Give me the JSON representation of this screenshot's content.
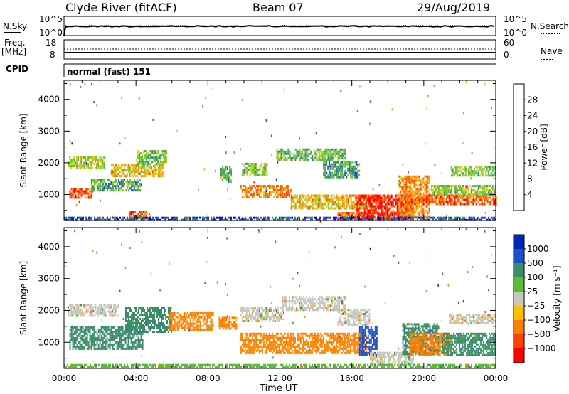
{
  "header": {
    "station": "Clyde River (fitACF)",
    "beam": "Beam 07",
    "date": "29/Aug/2019"
  },
  "strips": {
    "nsky_label": "N.Sky",
    "nsearch_label": "N.Search",
    "nsky_ticks": [
      "10^5",
      "10^0"
    ],
    "freq_label_1": "Freq.",
    "freq_label_2": "[MHz]",
    "freq_ticks": [
      "18",
      "8"
    ],
    "nave_label": "Nave",
    "nave_ticks": [
      "60",
      "0"
    ],
    "cpid_label": "CPID",
    "cpid_value": "normal (fast) 151"
  },
  "colors": {
    "power": [
      "#0000ff",
      "#2050c8",
      "#3a8c6a",
      "#5cc832",
      "#c8d219",
      "#ff9600",
      "#ff5000",
      "#ff0000"
    ],
    "velocity": [
      "#ff0000",
      "#ff4000",
      "#ff8000",
      "#ffbe00",
      "#c8c8c0",
      "#5abe32",
      "#3a8c6a",
      "#2050c8",
      "#0028b4"
    ]
  },
  "chart_data": [
    {
      "type": "heatmap",
      "name": "power",
      "xlabel": "Time UT",
      "ylabel": "Slant Range [km]",
      "x_ticks": [
        "00:00",
        "04:00",
        "08:00",
        "12:00",
        "16:00",
        "20:00",
        "00:00"
      ],
      "y_ticks": [
        1000,
        2000,
        3000,
        4000
      ],
      "xlim_hours": [
        0,
        24
      ],
      "ylim_km": [
        180,
        4600
      ],
      "colorbar_label": "Power [dB]",
      "colorbar_ticks": [
        4,
        8,
        12,
        16,
        20,
        24,
        28
      ],
      "colorbar_range": [
        0,
        32
      ],
      "regions": [
        {
          "t": [
            0.2,
            2.2
          ],
          "r": [
            1850,
            2200
          ],
          "v": 17
        },
        {
          "t": [
            0.3,
            1.6
          ],
          "r": [
            900,
            1200
          ],
          "v": 25
        },
        {
          "t": [
            1.5,
            4.2
          ],
          "r": [
            1100,
            1500
          ],
          "v": 12
        },
        {
          "t": [
            2.6,
            5.5
          ],
          "r": [
            1600,
            1950
          ],
          "v": 20
        },
        {
          "t": [
            4.0,
            5.7
          ],
          "r": [
            1900,
            2400
          ],
          "v": 14
        },
        {
          "t": [
            3.6,
            4.8
          ],
          "r": [
            250,
            480
          ],
          "v": 26
        },
        {
          "t": [
            8.7,
            9.3
          ],
          "r": [
            1400,
            1900
          ],
          "v": 12
        },
        {
          "t": [
            9.9,
            11.3
          ],
          "r": [
            1650,
            2000
          ],
          "v": 15
        },
        {
          "t": [
            9.8,
            12.6
          ],
          "r": [
            950,
            1300
          ],
          "v": 23
        },
        {
          "t": [
            11.8,
            15.6
          ],
          "r": [
            2050,
            2450
          ],
          "v": 13
        },
        {
          "t": [
            12.6,
            17.4
          ],
          "r": [
            550,
            1000
          ],
          "v": 20
        },
        {
          "t": [
            14.4,
            16.4
          ],
          "r": [
            1550,
            2050
          ],
          "v": 11
        },
        {
          "t": [
            15.2,
            18.4
          ],
          "r": [
            200,
            450
          ],
          "v": 24
        },
        {
          "t": [
            16.2,
            19.4
          ],
          "r": [
            200,
            1000
          ],
          "v": 29
        },
        {
          "t": [
            18.6,
            20.3
          ],
          "r": [
            300,
            1600
          ],
          "v": 23
        },
        {
          "t": [
            19.4,
            24.0
          ],
          "r": [
            700,
            1000
          ],
          "v": 25
        },
        {
          "t": [
            20.4,
            24.0
          ],
          "r": [
            1000,
            1300
          ],
          "v": 16
        },
        {
          "t": [
            21.5,
            24.0
          ],
          "r": [
            1600,
            1900
          ],
          "v": 15
        },
        {
          "t": [
            0.0,
            24.0
          ],
          "r": [
            190,
            300
          ],
          "v": 6
        }
      ]
    },
    {
      "type": "heatmap",
      "name": "velocity",
      "xlabel": "Time UT",
      "ylabel": "Slant Range [km]",
      "x_ticks": [
        "00:00",
        "04:00",
        "08:00",
        "12:00",
        "16:00",
        "20:00",
        "00:00"
      ],
      "y_ticks": [
        1000,
        2000,
        3000,
        4000
      ],
      "xlim_hours": [
        0,
        24
      ],
      "ylim_km": [
        180,
        4600
      ],
      "colorbar_label": "Velocity [m s⁻¹]",
      "colorbar_ticks": [
        "1000",
        "500",
        "100",
        "25",
        "−25",
        "−100",
        "−500",
        "−1000"
      ],
      "regions": [
        {
          "t": [
            0.2,
            3.0
          ],
          "r": [
            1850,
            2200
          ],
          "v": 0
        },
        {
          "t": [
            0.3,
            4.4
          ],
          "r": [
            800,
            1500
          ],
          "v": 300
        },
        {
          "t": [
            3.4,
            6.0
          ],
          "r": [
            1350,
            2100
          ],
          "v": 180
        },
        {
          "t": [
            5.8,
            8.3
          ],
          "r": [
            1400,
            1950
          ],
          "v": -150
        },
        {
          "t": [
            8.6,
            9.6
          ],
          "r": [
            1400,
            1800
          ],
          "v": -150
        },
        {
          "t": [
            9.8,
            12.2
          ],
          "r": [
            1650,
            2100
          ],
          "v": 0
        },
        {
          "t": [
            12.1,
            15.6
          ],
          "r": [
            2000,
            2450
          ],
          "v": 0
        },
        {
          "t": [
            9.8,
            16.8
          ],
          "r": [
            650,
            1300
          ],
          "v": -250
        },
        {
          "t": [
            15.2,
            17.0
          ],
          "r": [
            1550,
            2050
          ],
          "v": 0
        },
        {
          "t": [
            16.4,
            17.4
          ],
          "r": [
            600,
            1500
          ],
          "v": 700
        },
        {
          "t": [
            17.0,
            19.4
          ],
          "r": [
            300,
            700
          ],
          "v": 0
        },
        {
          "t": [
            18.8,
            20.8
          ],
          "r": [
            600,
            1600
          ],
          "v": 400
        },
        {
          "t": [
            19.2,
            21.5
          ],
          "r": [
            600,
            1300
          ],
          "v": -300
        },
        {
          "t": [
            21.0,
            24.0
          ],
          "r": [
            600,
            1300
          ],
          "v": 200
        },
        {
          "t": [
            21.4,
            24.0
          ],
          "r": [
            1600,
            1900
          ],
          "v": 0
        },
        {
          "t": [
            0.0,
            24.0
          ],
          "r": [
            190,
            320
          ],
          "v": 50
        }
      ]
    }
  ]
}
